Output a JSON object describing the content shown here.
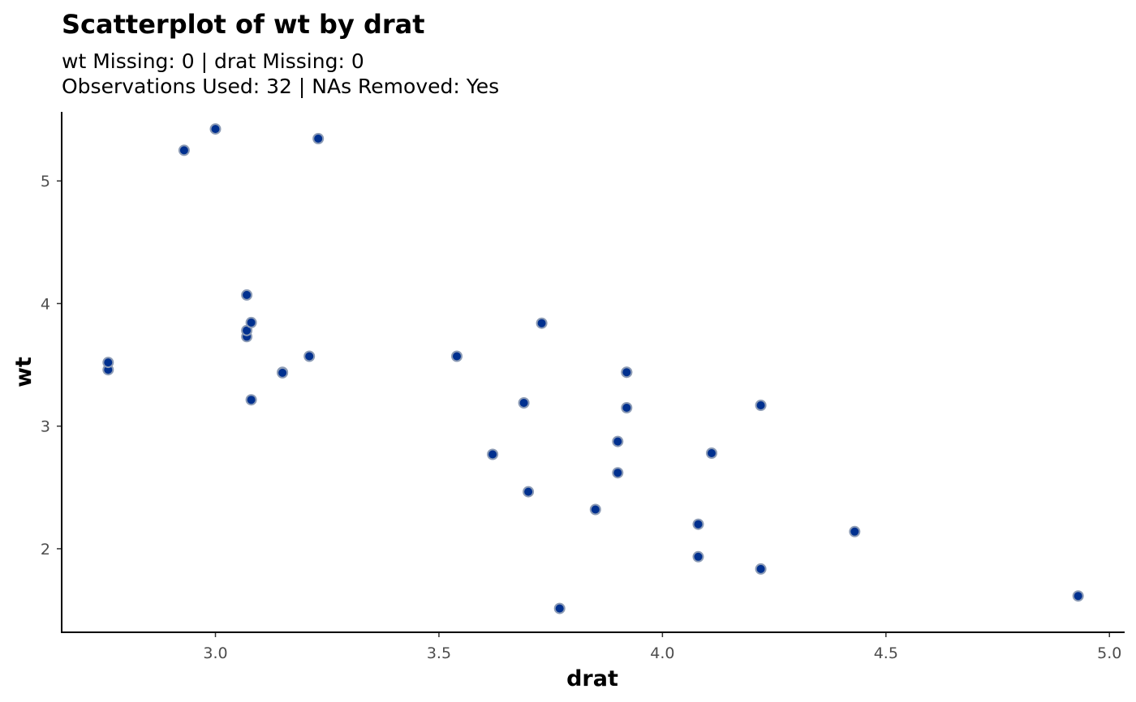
{
  "chart_data": {
    "type": "scatter",
    "title": "Scatterplot of wt by drat",
    "subtitle_lines": [
      "wt Missing: 0 | drat Missing: 0",
      "Observations Used: 32 | NAs Removed: Yes"
    ],
    "xlabel": "drat",
    "ylabel": "wt",
    "xlim": [
      2.656,
      5.034
    ],
    "ylim": [
      1.3185,
      5.5635
    ],
    "xticks": [
      3.0,
      3.5,
      4.0,
      4.5,
      5.0
    ],
    "xtick_labels": [
      "3.0",
      "3.5",
      "4.0",
      "4.5",
      "5.0"
    ],
    "yticks": [
      2,
      3,
      4,
      5
    ],
    "ytick_labels": [
      "2",
      "3",
      "4",
      "5"
    ],
    "grid": false,
    "legend": "none",
    "point_color": "#00308f",
    "point_outline": "#8c9bb5",
    "x": [
      3.9,
      3.9,
      3.85,
      3.08,
      3.15,
      2.76,
      3.21,
      3.69,
      3.92,
      3.92,
      3.92,
      3.07,
      3.07,
      3.07,
      2.93,
      3.0,
      3.23,
      4.08,
      4.93,
      4.22,
      3.7,
      2.76,
      3.15,
      3.73,
      3.08,
      4.08,
      4.43,
      3.77,
      4.22,
      3.62,
      3.54,
      4.11
    ],
    "y": [
      2.62,
      2.875,
      2.32,
      3.215,
      3.44,
      3.46,
      3.57,
      3.19,
      3.15,
      3.44,
      3.44,
      4.07,
      3.73,
      3.78,
      5.25,
      5.424,
      5.345,
      2.2,
      1.615,
      1.835,
      2.465,
      3.52,
      3.435,
      3.84,
      3.845,
      1.935,
      2.14,
      1.513,
      3.17,
      2.77,
      3.57,
      2.78
    ]
  }
}
